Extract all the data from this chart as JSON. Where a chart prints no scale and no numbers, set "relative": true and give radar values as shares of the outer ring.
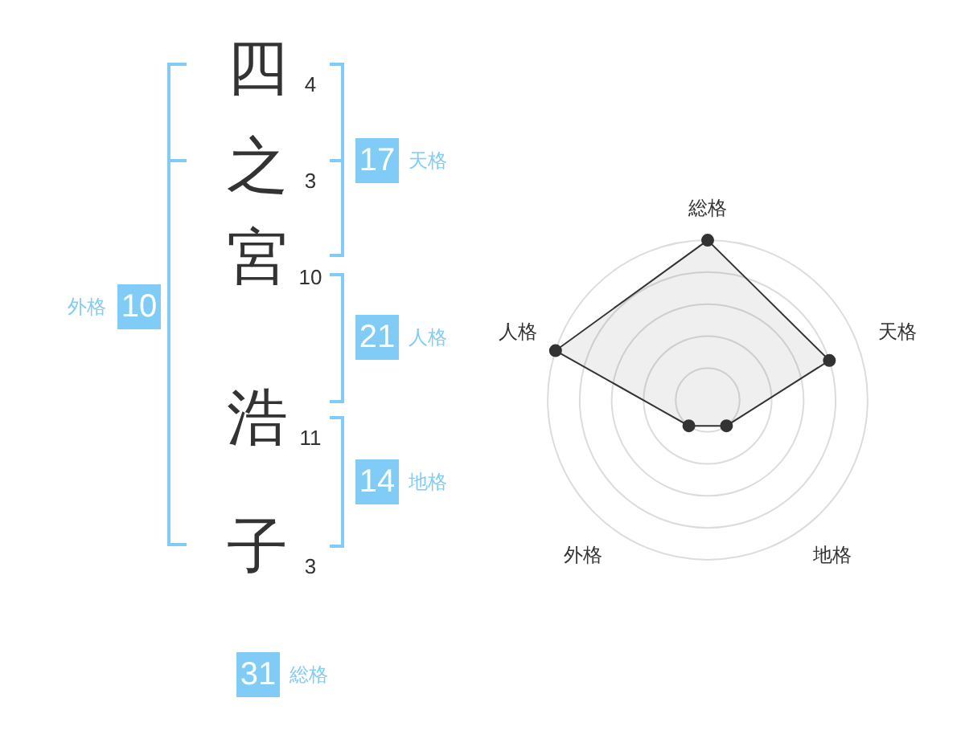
{
  "chart_data": [
    {
      "type": "other",
      "categories": [
        "四",
        "之",
        "宮",
        "浩",
        "子"
      ],
      "values": [
        4,
        3,
        10,
        11,
        3
      ],
      "data_labels": true
    },
    {
      "type": "other",
      "categories": [
        "天格",
        "人格",
        "地格",
        "外格",
        "総格"
      ],
      "values": [
        17,
        21,
        14,
        10,
        31
      ],
      "data_labels": true,
      "color": "#80ccf6"
    },
    {
      "type": "radar",
      "categories": [
        "総格",
        "天格",
        "地格",
        "外格",
        "人格"
      ],
      "relative": true,
      "series": [
        {
          "color": "#333333",
          "values": [
            1,
            0.8,
            0.2,
            0.2,
            1
          ]
        }
      ],
      "grid": true,
      "marker": "circle",
      "legend": false
    }
  ]
}
